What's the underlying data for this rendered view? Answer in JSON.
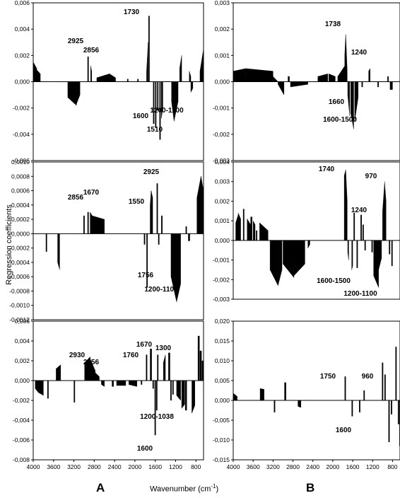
{
  "figure": {
    "ylabel": "Regression coefficients",
    "xlabel_main": "Wavenumber (cm",
    "xlabel_sup": "-1",
    "xlabel_end": ")",
    "left_column_label": "A",
    "right_column_label": "B"
  },
  "chart_data": [
    {
      "type": "bar",
      "ylim": [
        -0.006,
        0.006
      ],
      "yticks": [
        "0,006",
        "0,004",
        "0,002",
        "0,000",
        "-0,002",
        "-0,004",
        "-0,006"
      ],
      "xlim": [
        4000,
        650
      ],
      "xticks": [],
      "segments": [
        [
          4000,
          3930,
          0.0015,
          0.001
        ],
        [
          3930,
          3860,
          0.0009,
          0.0006
        ],
        [
          3320,
          3150,
          -0.0012,
          -0.0018
        ],
        [
          3150,
          3080,
          -0.0017,
          -0.001
        ],
        [
          2930,
          2920,
          0.0019,
          0.0019
        ],
        [
          2870,
          2850,
          0.0012,
          0.0008
        ],
        [
          2750,
          2500,
          0.0003,
          0.0006
        ],
        [
          2500,
          2380,
          0.0006,
          0.0003
        ],
        [
          2150,
          2140,
          0.0002,
          0.0002
        ],
        [
          1950,
          1940,
          0.0002,
          0.0002
        ],
        [
          1770,
          1740,
          0.0008,
          0.003
        ],
        [
          1732,
          1728,
          0.005,
          0.005
        ],
        [
          1640,
          1630,
          -0.0032,
          -0.0032
        ],
        [
          1600,
          1590,
          -0.0035,
          -0.0035
        ],
        [
          1560,
          1550,
          -0.0022,
          -0.0022
        ],
        [
          1515,
          1505,
          -0.0044,
          -0.0044
        ],
        [
          1480,
          1450,
          -0.0028,
          -0.002
        ],
        [
          1280,
          1230,
          -0.0015,
          -0.003
        ],
        [
          1230,
          1150,
          -0.003,
          -0.0015
        ],
        [
          1120,
          1080,
          0.001,
          0.002
        ],
        [
          930,
          900,
          0.0008,
          0.0004
        ],
        [
          900,
          860,
          -0.0008,
          -0.0005
        ],
        [
          720,
          650,
          0.0008,
          0.0025
        ]
      ],
      "annotations": [
        "1730",
        "2925",
        "2856",
        "1600",
        "1510",
        "1200-1100"
      ]
    },
    {
      "type": "bar",
      "ylim": [
        -0.003,
        0.003
      ],
      "yticks": [
        "0,003",
        "0,002",
        "0,001",
        "0,000",
        "-0,001",
        "-0,002",
        "-0,003"
      ],
      "xlim": [
        4000,
        650
      ],
      "xticks": [],
      "segments": [
        [
          4000,
          3750,
          0.0004,
          0.0005
        ],
        [
          3750,
          3200,
          0.0005,
          0.0004
        ],
        [
          3200,
          3100,
          0.0002,
          0.0
        ],
        [
          3100,
          2980,
          -0.0001,
          -0.0005
        ],
        [
          2900,
          2870,
          0.0002,
          0.0002
        ],
        [
          2850,
          2500,
          -0.0002,
          -0.0001
        ],
        [
          2300,
          2100,
          0.0002,
          0.0003
        ],
        [
          2080,
          1950,
          0.0003,
          0.0002
        ],
        [
          1900,
          1760,
          0.0002,
          0.0006
        ],
        [
          1760,
          1740,
          0.001,
          0.0018
        ],
        [
          1740,
          1710,
          0.0018,
          0.0004
        ],
        [
          1700,
          1660,
          -0.0005,
          -0.0013
        ],
        [
          1640,
          1580,
          -0.0012,
          -0.0018
        ],
        [
          1560,
          1490,
          -0.0015,
          -0.0006
        ],
        [
          1420,
          1400,
          -0.0002,
          -0.0002
        ],
        [
          1280,
          1250,
          0.0004,
          0.0005
        ],
        [
          1100,
          1080,
          -0.0002,
          -0.0002
        ],
        [
          900,
          880,
          0.0002,
          0.0002
        ],
        [
          850,
          800,
          -0.0003,
          -0.0003
        ]
      ],
      "annotations": [
        "1738",
        "1240",
        "1660",
        "1600-1500"
      ]
    },
    {
      "type": "bar",
      "ylim": [
        -0.0012,
        0.001
      ],
      "yticks": [
        "0,0010",
        "0,0008",
        "0,0006",
        "0,0004",
        "0,0002",
        "0,0000",
        "-0,0002",
        "-0,0004",
        "-0,0006",
        "-0,0008",
        "-0,0010",
        "-0,0012"
      ],
      "xlim": [
        4000,
        650
      ],
      "xticks": [],
      "segments": [
        [
          3750,
          3740,
          -0.00025,
          -0.00025
        ],
        [
          3520,
          3480,
          -0.0004,
          -0.0005
        ],
        [
          3010,
          3000,
          0.00025,
          0.00025
        ],
        [
          2930,
          2920,
          0.0003,
          0.0003
        ],
        [
          2880,
          2840,
          0.0003,
          0.00025
        ],
        [
          2840,
          2600,
          0.00025,
          0.0002
        ],
        [
          1820,
          1810,
          -0.00015,
          -0.00015
        ],
        [
          1770,
          1760,
          -0.00075,
          -0.00075
        ],
        [
          1700,
          1680,
          0.0004,
          0.0006
        ],
        [
          1680,
          1650,
          0.0006,
          0.0005
        ],
        [
          1570,
          1560,
          0.0007,
          0.0007
        ],
        [
          1540,
          1530,
          -0.00015,
          -0.00015
        ],
        [
          1480,
          1460,
          0.00025,
          0.00025
        ],
        [
          1290,
          1180,
          -0.0006,
          -0.00095
        ],
        [
          1180,
          1100,
          -0.00095,
          -0.0007
        ],
        [
          1000,
          980,
          0.0001,
          0.0001
        ],
        [
          950,
          920,
          -0.0001,
          -0.0001
        ],
        [
          780,
          700,
          0.0005,
          0.0008
        ],
        [
          700,
          650,
          0.0008,
          0.0006
        ]
      ],
      "annotations": [
        "2925",
        "2856",
        "1670",
        "1550",
        "1756",
        "1200-1100"
      ]
    },
    {
      "type": "bar",
      "ylim": [
        -0.003,
        0.004
      ],
      "yticks": [
        "0,004",
        "0,003",
        "0,002",
        "0,001",
        "0,000",
        "-0,001",
        "-0,002",
        "-0,003"
      ],
      "xlim": [
        4000,
        650
      ],
      "xticks": [],
      "segments": [
        [
          3950,
          3900,
          0.0009,
          0.0013
        ],
        [
          3900,
          3850,
          0.0014,
          0.0011
        ],
        [
          3800,
          3780,
          0.0016,
          0.0016
        ],
        [
          3720,
          3650,
          0.0011,
          0.0008
        ],
        [
          3650,
          3620,
          0.0012,
          0.0012
        ],
        [
          3600,
          3560,
          0.001,
          0.0008
        ],
        [
          3540,
          3520,
          0.0005,
          0.0005
        ],
        [
          3470,
          3300,
          0.0009,
          0.0005
        ],
        [
          3260,
          3100,
          -0.0015,
          -0.0023
        ],
        [
          3100,
          3020,
          -0.0023,
          -0.0015
        ],
        [
          3000,
          2780,
          -0.0012,
          -0.0019
        ],
        [
          2780,
          2560,
          -0.0018,
          -0.0012
        ],
        [
          2500,
          2460,
          -0.0004,
          -0.0002
        ],
        [
          1770,
          1740,
          0.0033,
          0.0036
        ],
        [
          1740,
          1710,
          0.0036,
          0.002
        ],
        [
          1700,
          1680,
          -0.0006,
          -0.001
        ],
        [
          1620,
          1600,
          -0.0015,
          -0.0013
        ],
        [
          1580,
          1560,
          0.0014,
          0.0014
        ],
        [
          1520,
          1500,
          -0.0014,
          -0.0014
        ],
        [
          1440,
          1420,
          0.0013,
          0.0013
        ],
        [
          1400,
          1380,
          0.0008,
          0.0008
        ],
        [
          1360,
          1340,
          -0.0005,
          -0.0005
        ],
        [
          1220,
          1200,
          -0.0006,
          -0.0006
        ],
        [
          1180,
          1080,
          -0.0018,
          -0.0024
        ],
        [
          1080,
          1020,
          -0.0015,
          -0.0009
        ],
        [
          1000,
          960,
          0.0015,
          0.0029
        ],
        [
          960,
          930,
          0.003,
          0.002
        ],
        [
          870,
          860,
          -0.0007,
          -0.0007
        ],
        [
          820,
          810,
          -0.0013,
          -0.0013
        ]
      ],
      "annotations": [
        "1740",
        "970",
        "1240",
        "1600-1500",
        "1200-1100"
      ]
    },
    {
      "type": "bar",
      "ylim": [
        -0.008,
        0.006
      ],
      "yticks": [
        "0,006",
        "0,004",
        "0,002",
        "0,000",
        "-0,002",
        "-0,004",
        "-0,006",
        "-0,008"
      ],
      "xlim": [
        4000,
        650
      ],
      "xticks": [
        "4000",
        "3600",
        "3200",
        "2800",
        "2400",
        "2000",
        "1600",
        "1200",
        "800"
      ],
      "segments": [
        [
          3960,
          3900,
          -0.0008,
          -0.0012
        ],
        [
          3900,
          3800,
          -0.0012,
          -0.0015
        ],
        [
          3720,
          3700,
          -0.0018,
          -0.0018
        ],
        [
          3550,
          3460,
          0.0012,
          0.0016
        ],
        [
          3200,
          3190,
          -0.0022,
          -0.0022
        ],
        [
          2990,
          2880,
          0.0018,
          0.0024
        ],
        [
          2880,
          2780,
          0.0022,
          0.001
        ],
        [
          2780,
          2700,
          0.0008,
          0.0004
        ],
        [
          2660,
          2600,
          -0.0004,
          -0.0006
        ],
        [
          2450,
          2420,
          -0.0006,
          -0.0006
        ],
        [
          2360,
          2180,
          -0.0005,
          -0.0005
        ],
        [
          2120,
          1960,
          -0.0004,
          -0.0006
        ],
        [
          1880,
          1860,
          -0.0004,
          -0.0004
        ],
        [
          1780,
          1760,
          0.0026,
          0.0026
        ],
        [
          1700,
          1670,
          0.0032,
          0.0032
        ],
        [
          1650,
          1630,
          -0.0008,
          -0.0008
        ],
        [
          1610,
          1600,
          -0.0055,
          -0.0055
        ],
        [
          1580,
          1570,
          -0.003,
          -0.003
        ],
        [
          1560,
          1540,
          0.0026,
          0.0026
        ],
        [
          1440,
          1400,
          0.0018,
          0.0026
        ],
        [
          1340,
          1310,
          0.0028,
          0.0028
        ],
        [
          1300,
          1290,
          -0.002,
          -0.002
        ],
        [
          1260,
          1250,
          -0.0014,
          -0.0014
        ],
        [
          1180,
          1100,
          -0.0015,
          -0.002
        ],
        [
          1080,
          1020,
          -0.0028,
          -0.0024
        ],
        [
          1010,
          980,
          -0.003,
          -0.003
        ],
        [
          880,
          820,
          -0.0033,
          -0.0025
        ],
        [
          760,
          730,
          0.0045,
          0.0045
        ],
        [
          720,
          690,
          0.003,
          0.003
        ],
        [
          680,
          650,
          0.002,
          0.002
        ]
      ],
      "annotations": [
        "2930",
        "2856",
        "1760",
        "1670",
        "1300",
        "1200-1038",
        "1600"
      ]
    },
    {
      "type": "bar",
      "ylim": [
        -0.015,
        0.02
      ],
      "yticks": [
        "0,020",
        "0,015",
        "0,010",
        "0,005",
        "0,000",
        "-0,005",
        "-0,010",
        "-0,015"
      ],
      "xlim": [
        4000,
        650
      ],
      "xticks": [
        "4000",
        "3600",
        "3200",
        "2800",
        "2400",
        "2000",
        "1600",
        "1200",
        "800"
      ],
      "segments": [
        [
          4000,
          3920,
          0.0018,
          0.001
        ],
        [
          3460,
          3380,
          0.003,
          0.0028
        ],
        [
          3180,
          3160,
          -0.003,
          -0.003
        ],
        [
          2970,
          2940,
          0.0045,
          0.0045
        ],
        [
          2700,
          2640,
          -0.0015,
          -0.0018
        ],
        [
          1760,
          1740,
          0.006,
          0.006
        ],
        [
          1620,
          1600,
          -0.004,
          -0.004
        ],
        [
          1470,
          1460,
          -0.003,
          -0.003
        ],
        [
          1380,
          1370,
          0.0025,
          0.0025
        ],
        [
          1010,
          990,
          0.0095,
          0.0095
        ],
        [
          960,
          950,
          0.0065,
          0.0065
        ],
        [
          880,
          870,
          -0.0105,
          -0.0105
        ],
        [
          830,
          810,
          -0.0035,
          -0.0035
        ],
        [
          740,
          720,
          0.0135,
          0.0135
        ],
        [
          690,
          670,
          -0.006,
          -0.006
        ],
        [
          660,
          650,
          -0.0115,
          -0.0115
        ]
      ],
      "annotations": [
        "1750",
        "960",
        "1600"
      ]
    }
  ]
}
